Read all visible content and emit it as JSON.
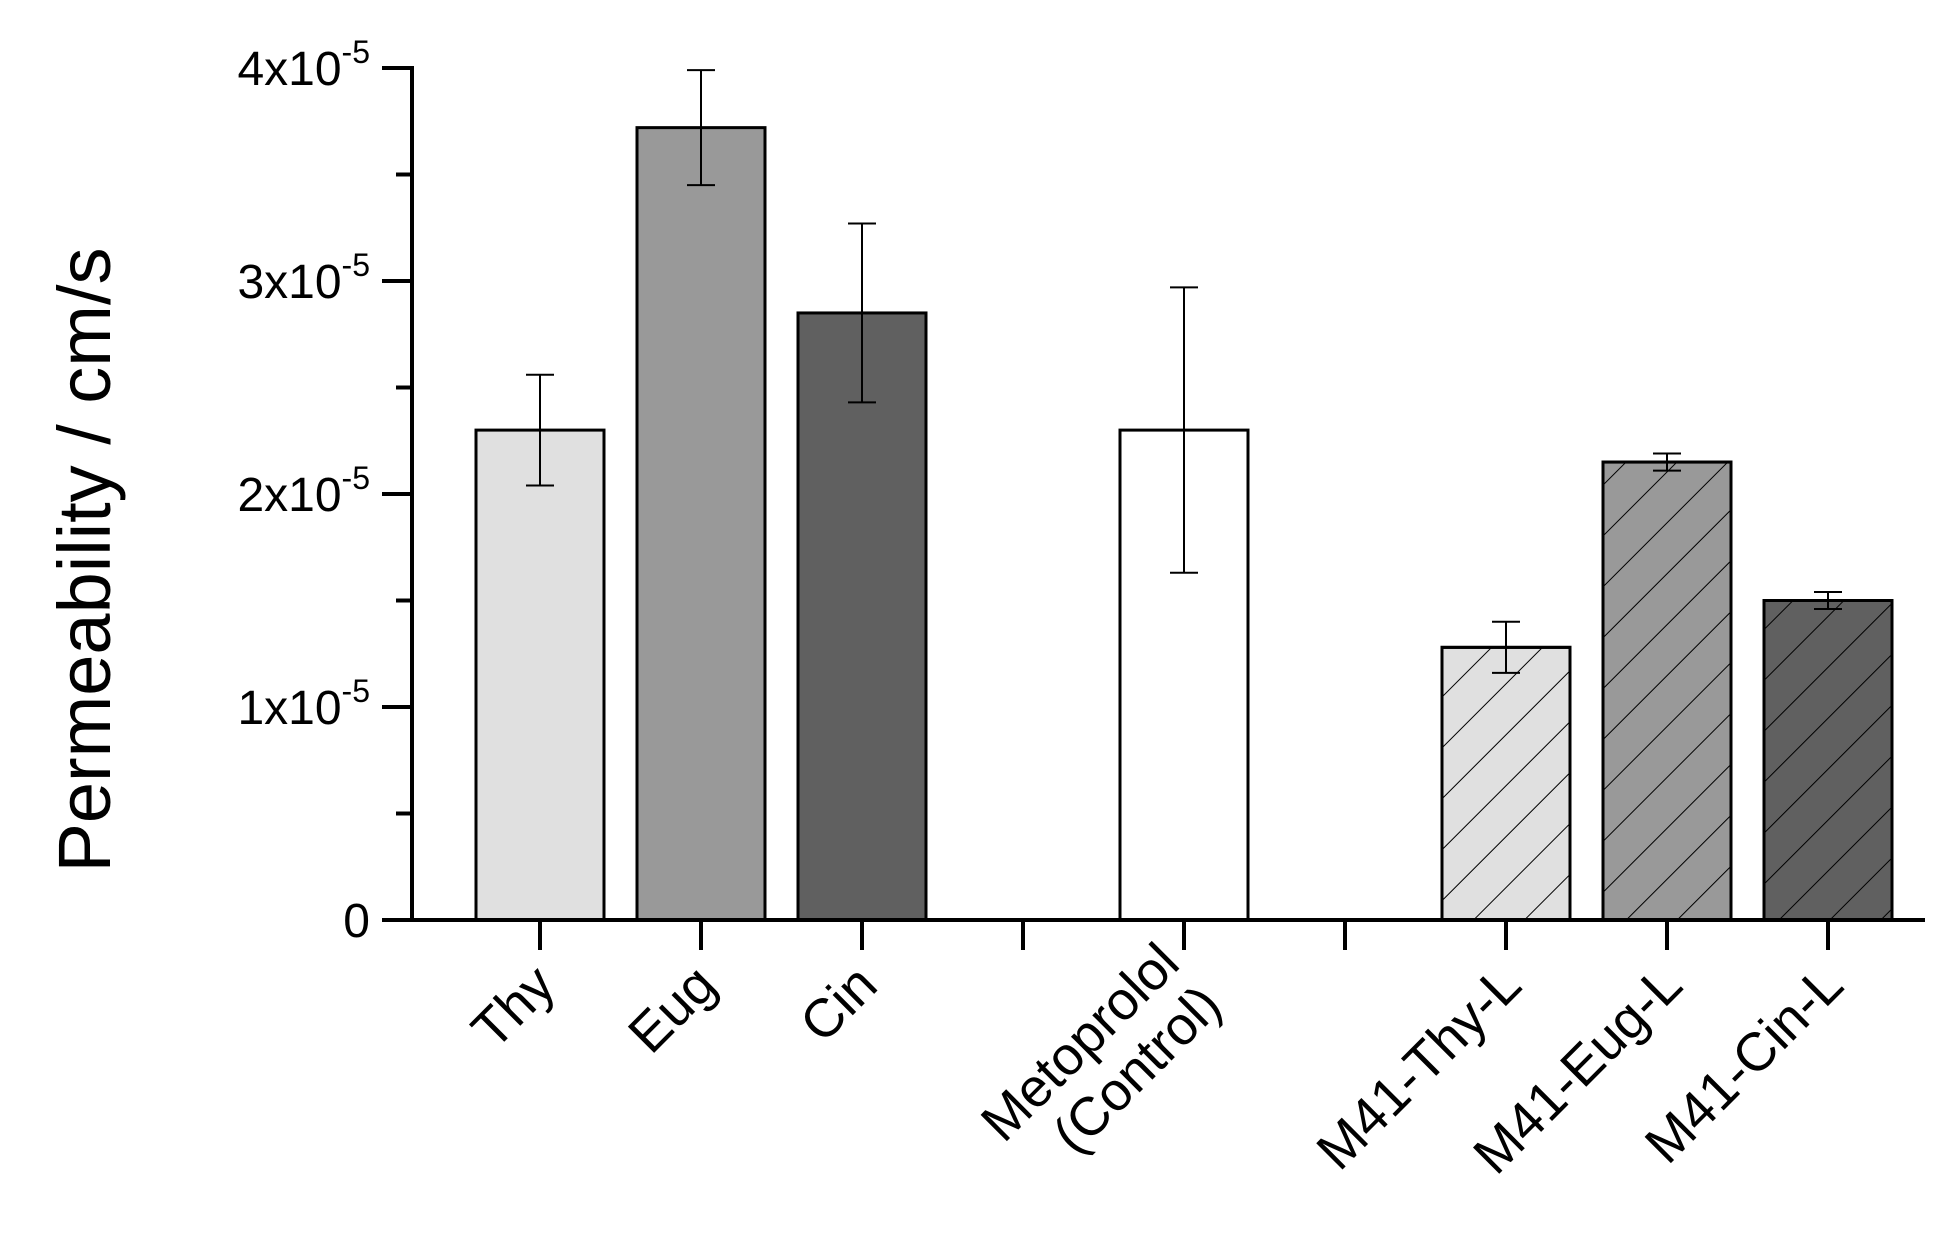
{
  "chart_data": {
    "type": "bar",
    "title": "",
    "xlabel": "",
    "ylabel": "Permeability / cm/s",
    "ylim": [
      0,
      4e-05
    ],
    "y_ticks": [
      {
        "value": 0,
        "mantissa": "0",
        "exponent": ""
      },
      {
        "value": 1e-05,
        "mantissa": "1x10",
        "exponent": "-5"
      },
      {
        "value": 2e-05,
        "mantissa": "2x10",
        "exponent": "-5"
      },
      {
        "value": 3e-05,
        "mantissa": "3x10",
        "exponent": "-5"
      },
      {
        "value": 4e-05,
        "mantissa": "4x10",
        "exponent": "-5"
      }
    ],
    "slots": 9,
    "categories": [
      {
        "slot": 0,
        "lines": [
          "Thy"
        ],
        "value": 2.3e-05,
        "error": 2.6e-06,
        "fill": "#e0e0e0",
        "hatched": false
      },
      {
        "slot": 1,
        "lines": [
          "Eug"
        ],
        "value": 3.72e-05,
        "error": 2.7e-06,
        "fill": "#999999",
        "hatched": false
      },
      {
        "slot": 2,
        "lines": [
          "Cin"
        ],
        "value": 2.85e-05,
        "error": 4.2e-06,
        "fill": "#606060",
        "hatched": false
      },
      {
        "slot": 4,
        "lines": [
          "Metoprolol",
          "(Control)"
        ],
        "value": 2.3e-05,
        "error": 6.7e-06,
        "fill": "#ffffff",
        "hatched": false
      },
      {
        "slot": 6,
        "lines": [
          "M41-Thy-L"
        ],
        "value": 1.28e-05,
        "error": 1.2e-06,
        "fill": "#e0e0e0",
        "hatched": true
      },
      {
        "slot": 7,
        "lines": [
          "M41-Eug-L"
        ],
        "value": 2.15e-05,
        "error": 4e-07,
        "fill": "#999999",
        "hatched": true
      },
      {
        "slot": 8,
        "lines": [
          "M41-Cin-L"
        ],
        "value": 1.5e-05,
        "error": 4e-07,
        "fill": "#606060",
        "hatched": true
      }
    ]
  }
}
